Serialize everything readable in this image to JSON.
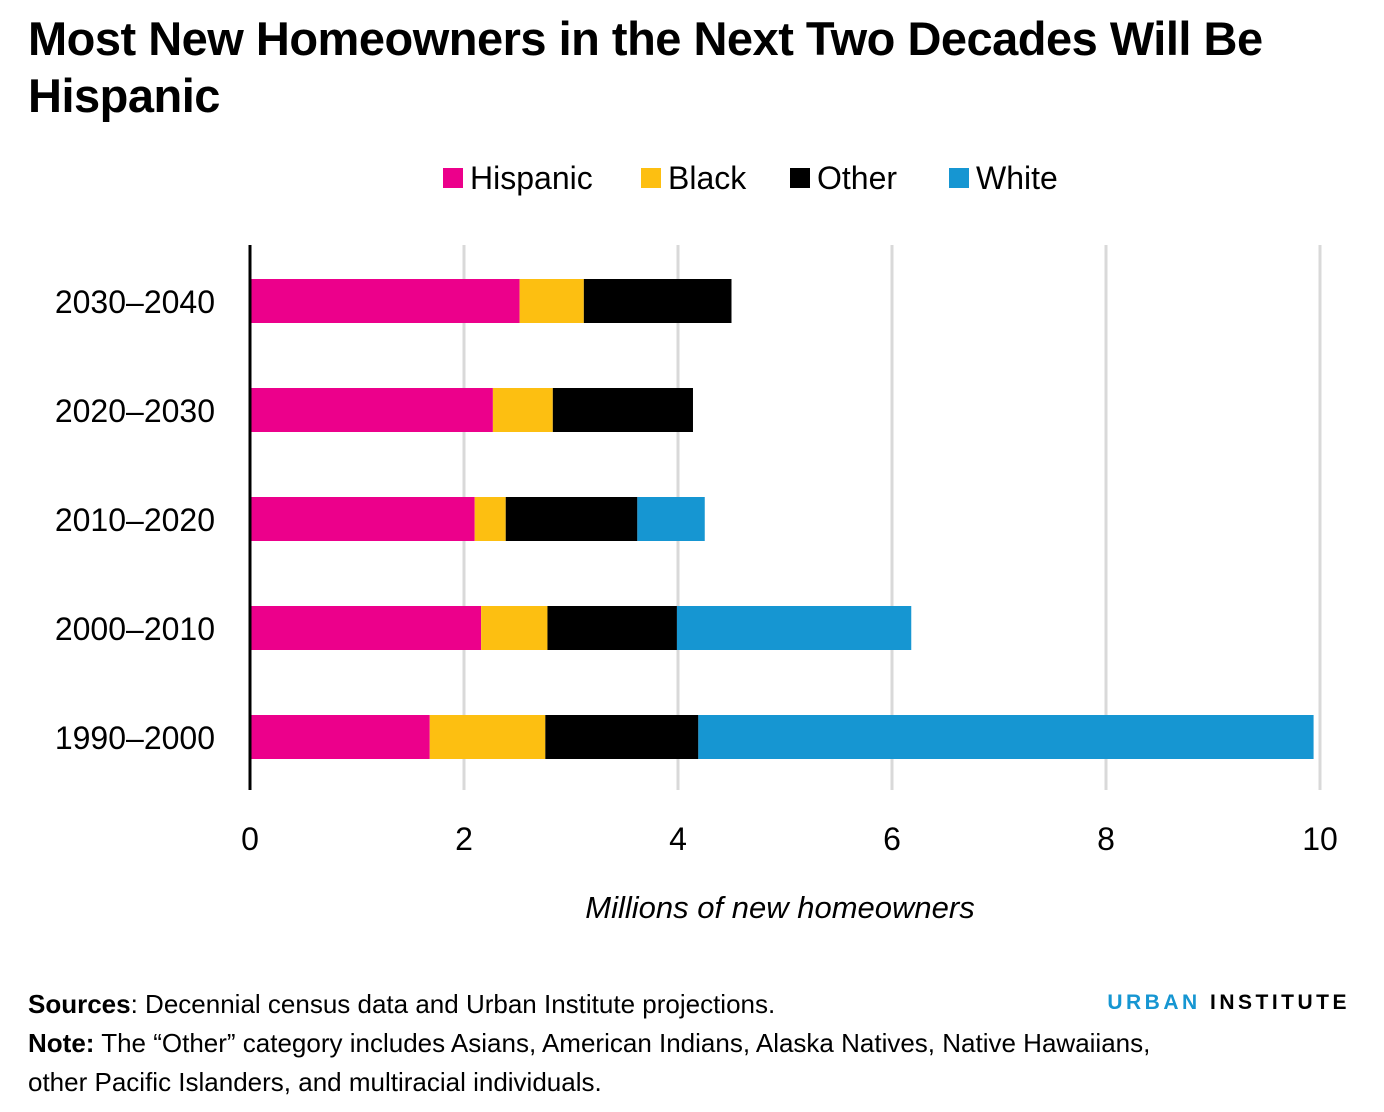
{
  "title": "Most New Homeowners in the Next Two Decades Will Be Hispanic",
  "chart_data": {
    "type": "bar",
    "orientation": "horizontal",
    "stacked": true,
    "categories": [
      "2030–2040",
      "2020–2030",
      "2010–2020",
      "2000–2010",
      "1990–2000"
    ],
    "series": [
      {
        "name": "Hispanic",
        "color": "#ec008b",
        "values": [
          2.52,
          2.27,
          2.1,
          2.16,
          1.68
        ]
      },
      {
        "name": "Black",
        "color": "#fdbf11",
        "values": [
          0.6,
          0.56,
          0.29,
          0.62,
          1.08
        ]
      },
      {
        "name": "Other",
        "color": "#000000",
        "values": [
          1.38,
          1.31,
          1.23,
          1.21,
          1.43
        ]
      },
      {
        "name": "White",
        "color": "#1696d2",
        "values": [
          0,
          0,
          0.63,
          2.19,
          5.75
        ]
      }
    ],
    "xlabel": "Millions of new homeowners",
    "ylabel": "",
    "xlim": [
      0,
      10
    ],
    "xticks": [
      0,
      2,
      4,
      6,
      8,
      10
    ],
    "xtick_labels": [
      "0",
      "2",
      "4",
      "6",
      "8",
      "10"
    ],
    "grid": true,
    "legend_position": "top-center"
  },
  "footer": {
    "sources_label": "Sources",
    "sources_text": ": Decennial census data and Urban Institute projections.",
    "note_label": "Note:",
    "note_text": " The “Other” category includes Asians, American Indians, Alaska Natives, Native Hawaiians, other Pacific Islanders, and multiracial individuals."
  },
  "brand": {
    "urban": "URBAN",
    "institute": "INSTITUTE"
  }
}
